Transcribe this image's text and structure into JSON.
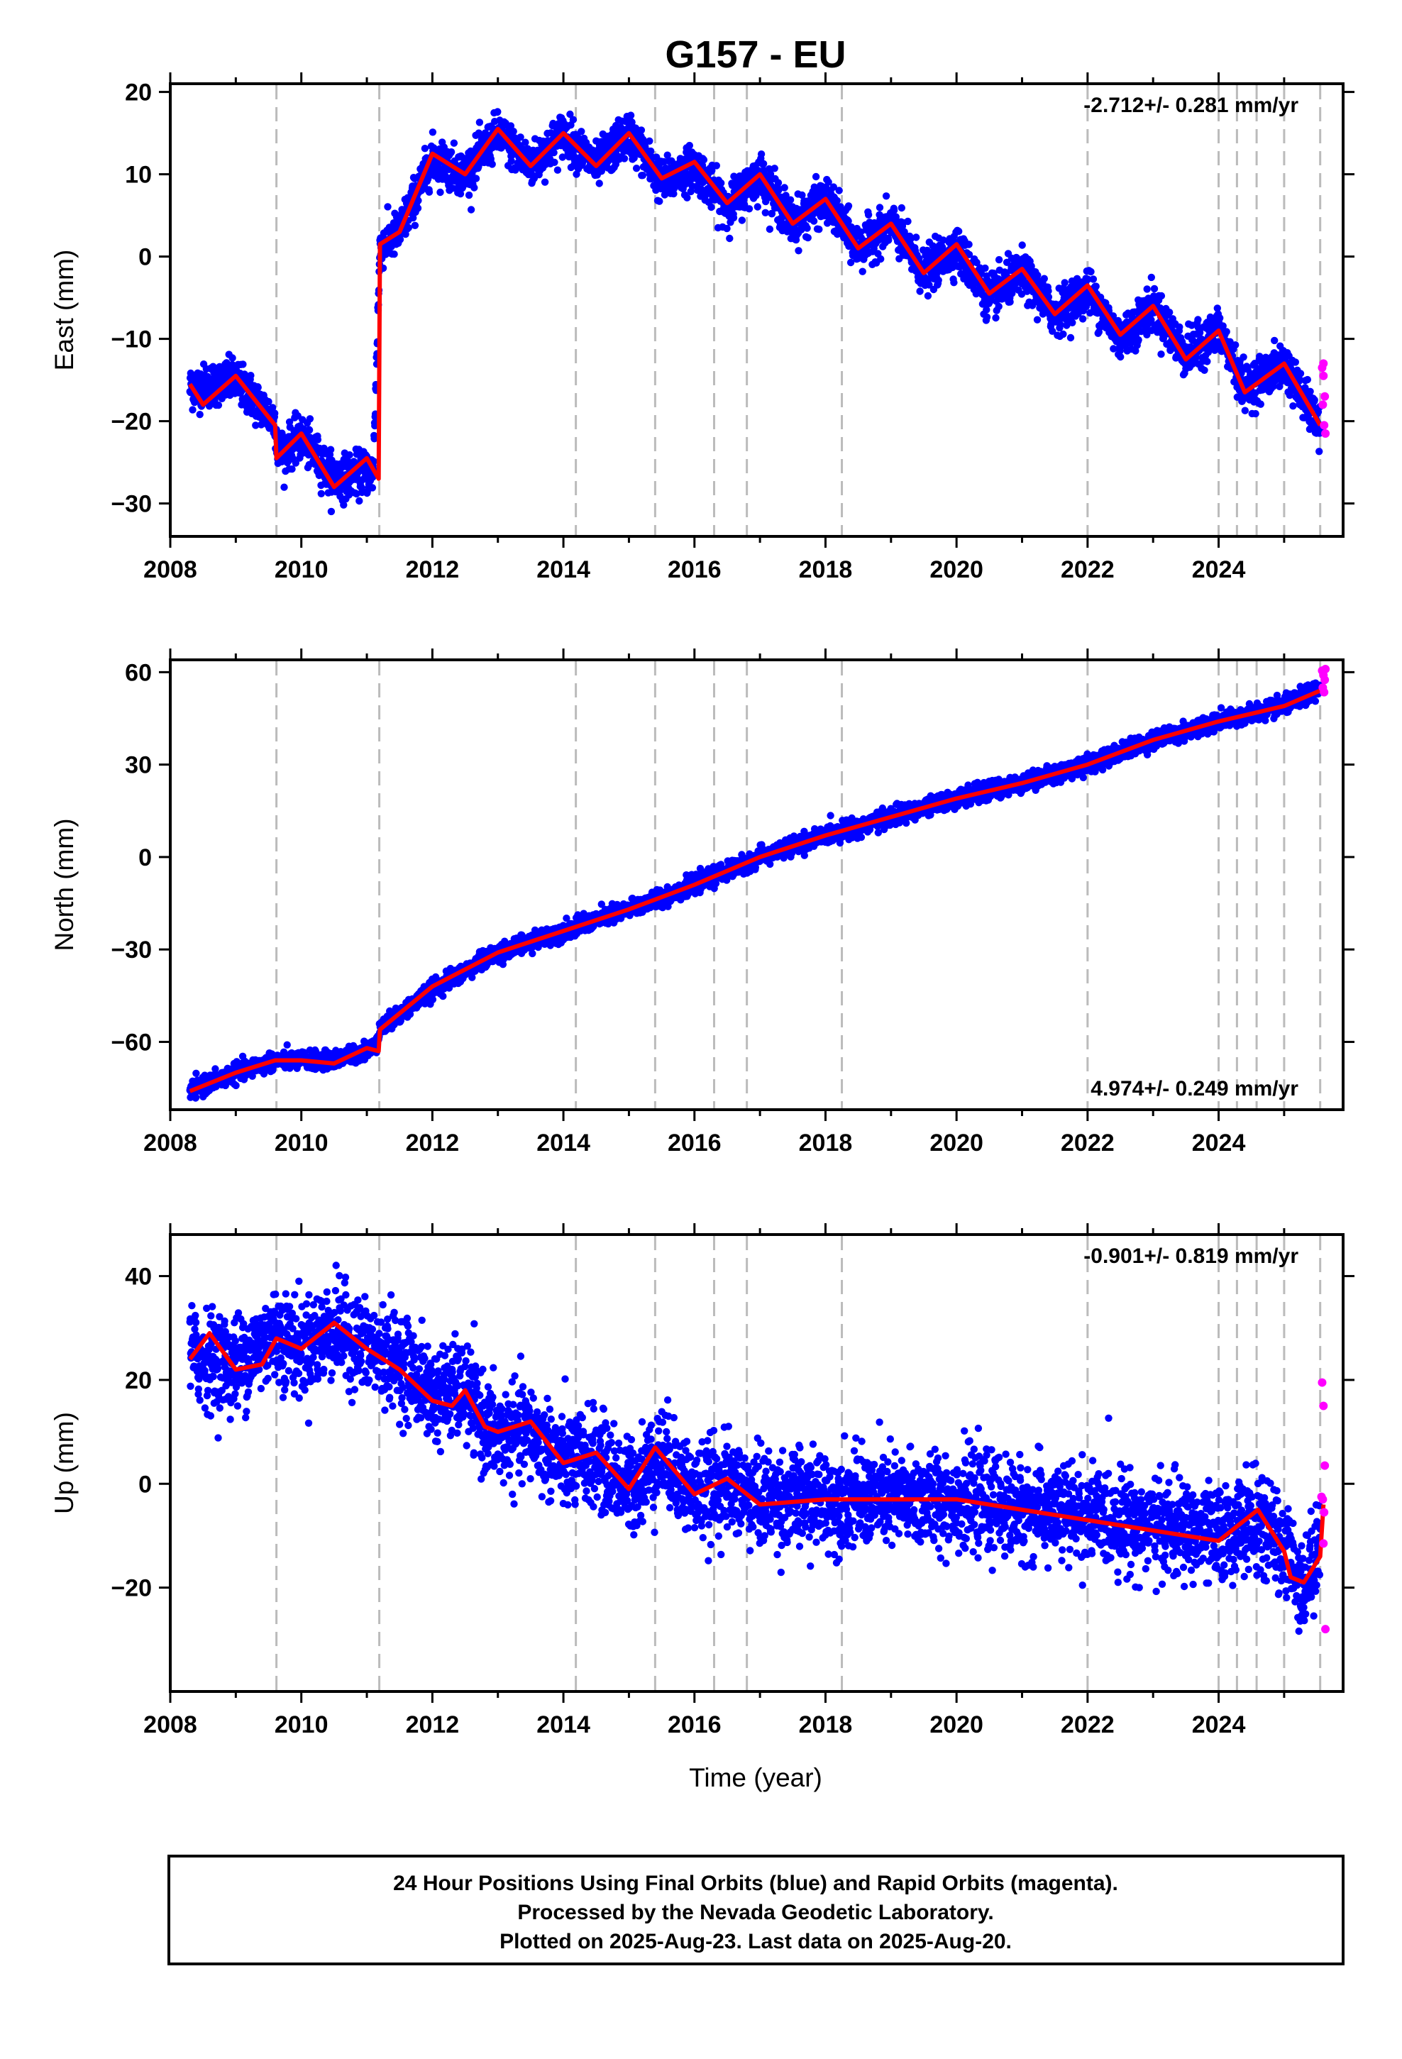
{
  "title": "G157 - EU",
  "footer": {
    "lines": [
      "24 Hour Positions Using Final Orbits (blue) and Rapid Orbits (magenta).",
      "Processed by the Nevada Geodetic Laboratory.",
      "Plotted on 2025-Aug-23. Last data on 2025-Aug-20."
    ]
  },
  "colors": {
    "final_orbits": "#0000ff",
    "rapid_orbits": "#ff00ff",
    "model_fit": "#ff0000",
    "event_lines": "#bbbbbb"
  },
  "chart_data": [
    {
      "type": "scatter",
      "ylabel": "East (mm)",
      "xlabel": "",
      "xlim": [
        2008.0,
        2025.9
      ],
      "ylim": [
        -34,
        21
      ],
      "xticks": [
        2008,
        2010,
        2012,
        2014,
        2016,
        2018,
        2020,
        2022,
        2024
      ],
      "yticks": [
        -30,
        -20,
        -10,
        0,
        10,
        20
      ],
      "rate_label": "-2.712+/- 0.281 mm/yr",
      "rate_position": "top-right",
      "grid": false,
      "event_lines": [
        2009.62,
        2011.19,
        2014.19,
        2015.4,
        2016.3,
        2016.8,
        2018.25,
        2022.0,
        2024.0,
        2024.28,
        2024.58,
        2025.0,
        2025.55
      ],
      "steps": [
        [
          2009.62,
          -3.5
        ],
        [
          2011.19,
          28.5
        ],
        [
          2024.0,
          -1.0
        ],
        [
          2025.0,
          -1.0
        ]
      ],
      "trend": {
        "t0": 2008.3,
        "y0": -18.5,
        "rate": 0.5,
        "break_t": 2011.19,
        "rate_after": -2.25
      },
      "seasonal": {
        "amplitude": 2.3,
        "phase": 0.15
      },
      "scatter_sd": 1.3,
      "series": [
        {
          "name": "Final Orbits (blue)",
          "kind": "points",
          "anchors": [
            [
              2008.3,
              -16
            ],
            [
              2009.0,
              -15
            ],
            [
              2009.6,
              -20
            ],
            [
              2009.65,
              -24
            ],
            [
              2010.0,
              -22
            ],
            [
              2010.5,
              -27
            ],
            [
              2011.1,
              -26
            ],
            [
              2011.2,
              1
            ],
            [
              2011.5,
              3
            ],
            [
              2012.0,
              12
            ],
            [
              2012.5,
              10
            ],
            [
              2013.0,
              15
            ],
            [
              2013.5,
              11
            ],
            [
              2014.0,
              15
            ],
            [
              2014.5,
              11
            ],
            [
              2015.0,
              15
            ],
            [
              2015.5,
              9
            ],
            [
              2016.0,
              11
            ],
            [
              2016.5,
              6
            ],
            [
              2017.0,
              10
            ],
            [
              2017.5,
              4
            ],
            [
              2018.0,
              7
            ],
            [
              2018.5,
              1
            ],
            [
              2019.0,
              4
            ],
            [
              2019.5,
              -2
            ],
            [
              2020.0,
              1
            ],
            [
              2020.5,
              -5
            ],
            [
              2021.0,
              -2
            ],
            [
              2021.5,
              -7
            ],
            [
              2022.0,
              -4
            ],
            [
              2022.5,
              -10
            ],
            [
              2023.0,
              -6
            ],
            [
              2023.5,
              -12
            ],
            [
              2024.0,
              -9
            ],
            [
              2024.4,
              -16
            ],
            [
              2025.0,
              -13
            ],
            [
              2025.55,
              -21
            ]
          ]
        },
        {
          "name": "Rapid Orbits (magenta)",
          "kind": "points",
          "values": [
            [
              2025.58,
              -13.5
            ],
            [
              2025.6,
              -14.5
            ],
            [
              2025.62,
              -17.0
            ],
            [
              2025.59,
              -18.0
            ],
            [
              2025.61,
              -20.5
            ],
            [
              2025.63,
              -21.5
            ],
            [
              2025.6,
              -13.0
            ]
          ]
        },
        {
          "name": "Model fit (red)",
          "kind": "line",
          "anchors": [
            [
              2008.3,
              -15.5
            ],
            [
              2008.5,
              -18
            ],
            [
              2009.0,
              -14.5
            ],
            [
              2009.6,
              -20.5
            ],
            [
              2009.62,
              -24.5
            ],
            [
              2010.0,
              -21.5
            ],
            [
              2010.5,
              -28
            ],
            [
              2011.0,
              -24.5
            ],
            [
              2011.18,
              -27
            ],
            [
              2011.2,
              1.5
            ],
            [
              2011.5,
              3
            ],
            [
              2012.0,
              12.5
            ],
            [
              2012.5,
              10
            ],
            [
              2013.0,
              15.5
            ],
            [
              2013.5,
              11
            ],
            [
              2014.0,
              15
            ],
            [
              2014.5,
              11
            ],
            [
              2015.0,
              15
            ],
            [
              2015.5,
              9.5
            ],
            [
              2016.0,
              11.5
            ],
            [
              2016.5,
              6.5
            ],
            [
              2017.0,
              10
            ],
            [
              2017.5,
              4
            ],
            [
              2018.0,
              7
            ],
            [
              2018.5,
              1
            ],
            [
              2019.0,
              4
            ],
            [
              2019.5,
              -2
            ],
            [
              2020.0,
              1.5
            ],
            [
              2020.5,
              -4.5
            ],
            [
              2021.0,
              -1.5
            ],
            [
              2021.5,
              -7
            ],
            [
              2022.0,
              -3.5
            ],
            [
              2022.5,
              -9.5
            ],
            [
              2023.0,
              -6
            ],
            [
              2023.5,
              -12.5
            ],
            [
              2024.0,
              -9
            ],
            [
              2024.4,
              -16.5
            ],
            [
              2025.0,
              -13
            ],
            [
              2025.55,
              -20.5
            ]
          ]
        }
      ]
    },
    {
      "type": "scatter",
      "ylabel": "North (mm)",
      "xlabel": "",
      "xlim": [
        2008.0,
        2025.9
      ],
      "ylim": [
        -82,
        64
      ],
      "xticks": [
        2008,
        2010,
        2012,
        2014,
        2016,
        2018,
        2020,
        2022,
        2024
      ],
      "yticks": [
        -60,
        -30,
        0,
        30,
        60
      ],
      "rate_label": "4.974+/- 0.249 mm/yr",
      "rate_position": "bottom-right",
      "grid": false,
      "event_lines": [
        2009.62,
        2011.19,
        2014.19,
        2015.4,
        2016.3,
        2016.8,
        2018.25,
        2022.0,
        2024.0,
        2024.28,
        2024.58,
        2025.0,
        2025.55
      ],
      "trend": {
        "t0": 2008.3,
        "y0": -76,
        "rate": 5.0,
        "break_t": 2011.19,
        "jump": 8
      },
      "seasonal": {
        "amplitude": 1.8,
        "phase": 0.2
      },
      "scatter_sd": 1.4,
      "series": [
        {
          "name": "Final Orbits (blue)",
          "kind": "points",
          "anchors": [
            [
              2008.3,
              -76
            ],
            [
              2009.0,
              -70
            ],
            [
              2009.6,
              -66
            ],
            [
              2010.0,
              -66
            ],
            [
              2010.5,
              -66
            ],
            [
              2011.1,
              -62
            ],
            [
              2011.2,
              -56
            ],
            [
              2012.0,
              -43
            ],
            [
              2013.0,
              -31
            ],
            [
              2014.0,
              -24
            ],
            [
              2015.0,
              -17
            ],
            [
              2016.0,
              -9
            ],
            [
              2017.0,
              0
            ],
            [
              2018.0,
              7
            ],
            [
              2019.0,
              13
            ],
            [
              2020.0,
              19
            ],
            [
              2021.0,
              24
            ],
            [
              2022.0,
              30
            ],
            [
              2023.0,
              38
            ],
            [
              2024.0,
              44
            ],
            [
              2025.0,
              49
            ],
            [
              2025.55,
              55
            ]
          ]
        },
        {
          "name": "Rapid Orbits (magenta)",
          "kind": "points",
          "values": [
            [
              2025.58,
              60.5
            ],
            [
              2025.6,
              59.0
            ],
            [
              2025.62,
              57.5
            ],
            [
              2025.59,
              55.0
            ],
            [
              2025.61,
              53.5
            ],
            [
              2025.63,
              61.0
            ]
          ]
        },
        {
          "name": "Model fit (red)",
          "kind": "line",
          "anchors": [
            [
              2008.3,
              -76
            ],
            [
              2009.0,
              -70
            ],
            [
              2009.6,
              -66
            ],
            [
              2010.0,
              -66
            ],
            [
              2010.5,
              -67
            ],
            [
              2011.0,
              -62
            ],
            [
              2011.18,
              -63
            ],
            [
              2011.2,
              -56
            ],
            [
              2012.0,
              -42
            ],
            [
              2013.0,
              -31
            ],
            [
              2014.0,
              -24
            ],
            [
              2015.0,
              -17
            ],
            [
              2016.0,
              -9
            ],
            [
              2017.0,
              0
            ],
            [
              2018.0,
              7
            ],
            [
              2019.0,
              13
            ],
            [
              2020.0,
              19
            ],
            [
              2021.0,
              24
            ],
            [
              2022.0,
              30
            ],
            [
              2023.0,
              38
            ],
            [
              2024.0,
              44
            ],
            [
              2025.0,
              49
            ],
            [
              2025.55,
              54
            ]
          ]
        }
      ]
    },
    {
      "type": "scatter",
      "ylabel": "Up (mm)",
      "xlabel": "Time (year)",
      "xlim": [
        2008.0,
        2025.9
      ],
      "ylim": [
        -40,
        48
      ],
      "xticks": [
        2008,
        2010,
        2012,
        2014,
        2016,
        2018,
        2020,
        2022,
        2024
      ],
      "yticks": [
        -20,
        0,
        20,
        40
      ],
      "rate_label": "-0.901+/- 0.819 mm/yr",
      "rate_position": "top-right",
      "grid": false,
      "event_lines": [
        2009.62,
        2011.19,
        2014.19,
        2015.4,
        2016.3,
        2016.8,
        2018.25,
        2022.0,
        2024.0,
        2024.28,
        2024.58,
        2025.0,
        2025.55
      ],
      "seasonal": {
        "amplitude": 3.5,
        "phase": 0.55
      },
      "scatter_sd": 4.5,
      "series": [
        {
          "name": "Final Orbits (blue)",
          "kind": "points",
          "anchors": [
            [
              2008.3,
              25
            ],
            [
              2009.0,
              23
            ],
            [
              2009.6,
              29
            ],
            [
              2010.0,
              26
            ],
            [
              2010.5,
              30
            ],
            [
              2011.0,
              26
            ],
            [
              2011.5,
              24
            ],
            [
              2012.0,
              17
            ],
            [
              2012.5,
              18
            ],
            [
              2012.8,
              11
            ],
            [
              2013.0,
              9
            ],
            [
              2013.5,
              10
            ],
            [
              2014.0,
              4
            ],
            [
              2014.5,
              5
            ],
            [
              2015.0,
              -1
            ],
            [
              2015.5,
              6
            ],
            [
              2016.0,
              -2
            ],
            [
              2016.5,
              0
            ],
            [
              2017.0,
              -3
            ],
            [
              2018.0,
              -3
            ],
            [
              2019.0,
              -3
            ],
            [
              2020.0,
              -3
            ],
            [
              2021.0,
              -5
            ],
            [
              2022.0,
              -6
            ],
            [
              2023.0,
              -8
            ],
            [
              2024.0,
              -10
            ],
            [
              2024.5,
              -7
            ],
            [
              2025.0,
              -12
            ],
            [
              2025.3,
              -20
            ],
            [
              2025.55,
              -10
            ]
          ]
        },
        {
          "name": "Rapid Orbits (magenta)",
          "kind": "points",
          "values": [
            [
              2025.58,
              19.5
            ],
            [
              2025.6,
              15.0
            ],
            [
              2025.62,
              3.5
            ],
            [
              2025.59,
              -3.0
            ],
            [
              2025.61,
              -5.5
            ],
            [
              2025.6,
              -11.5
            ],
            [
              2025.63,
              -28.0
            ],
            [
              2025.57,
              -2.5
            ]
          ]
        },
        {
          "name": "Model fit (red)",
          "kind": "line",
          "anchors": [
            [
              2008.3,
              24
            ],
            [
              2008.6,
              29
            ],
            [
              2009.0,
              22
            ],
            [
              2009.4,
              23
            ],
            [
              2009.62,
              28
            ],
            [
              2010.0,
              26
            ],
            [
              2010.5,
              31
            ],
            [
              2011.0,
              26
            ],
            [
              2011.5,
              22
            ],
            [
              2012.0,
              16
            ],
            [
              2012.3,
              15
            ],
            [
              2012.5,
              18
            ],
            [
              2012.8,
              11
            ],
            [
              2013.0,
              10
            ],
            [
              2013.5,
              12
            ],
            [
              2014.0,
              4
            ],
            [
              2014.5,
              6
            ],
            [
              2015.0,
              -1
            ],
            [
              2015.4,
              7
            ],
            [
              2016.0,
              -2
            ],
            [
              2016.5,
              1
            ],
            [
              2017.0,
              -4
            ],
            [
              2018.0,
              -3
            ],
            [
              2019.0,
              -3
            ],
            [
              2020.0,
              -3
            ],
            [
              2021.0,
              -5
            ],
            [
              2022.0,
              -7
            ],
            [
              2023.0,
              -9
            ],
            [
              2024.0,
              -11
            ],
            [
              2024.6,
              -5
            ],
            [
              2025.0,
              -13
            ],
            [
              2025.1,
              -18
            ],
            [
              2025.3,
              -19
            ],
            [
              2025.55,
              -14
            ],
            [
              2025.6,
              -4
            ]
          ]
        }
      ]
    }
  ]
}
